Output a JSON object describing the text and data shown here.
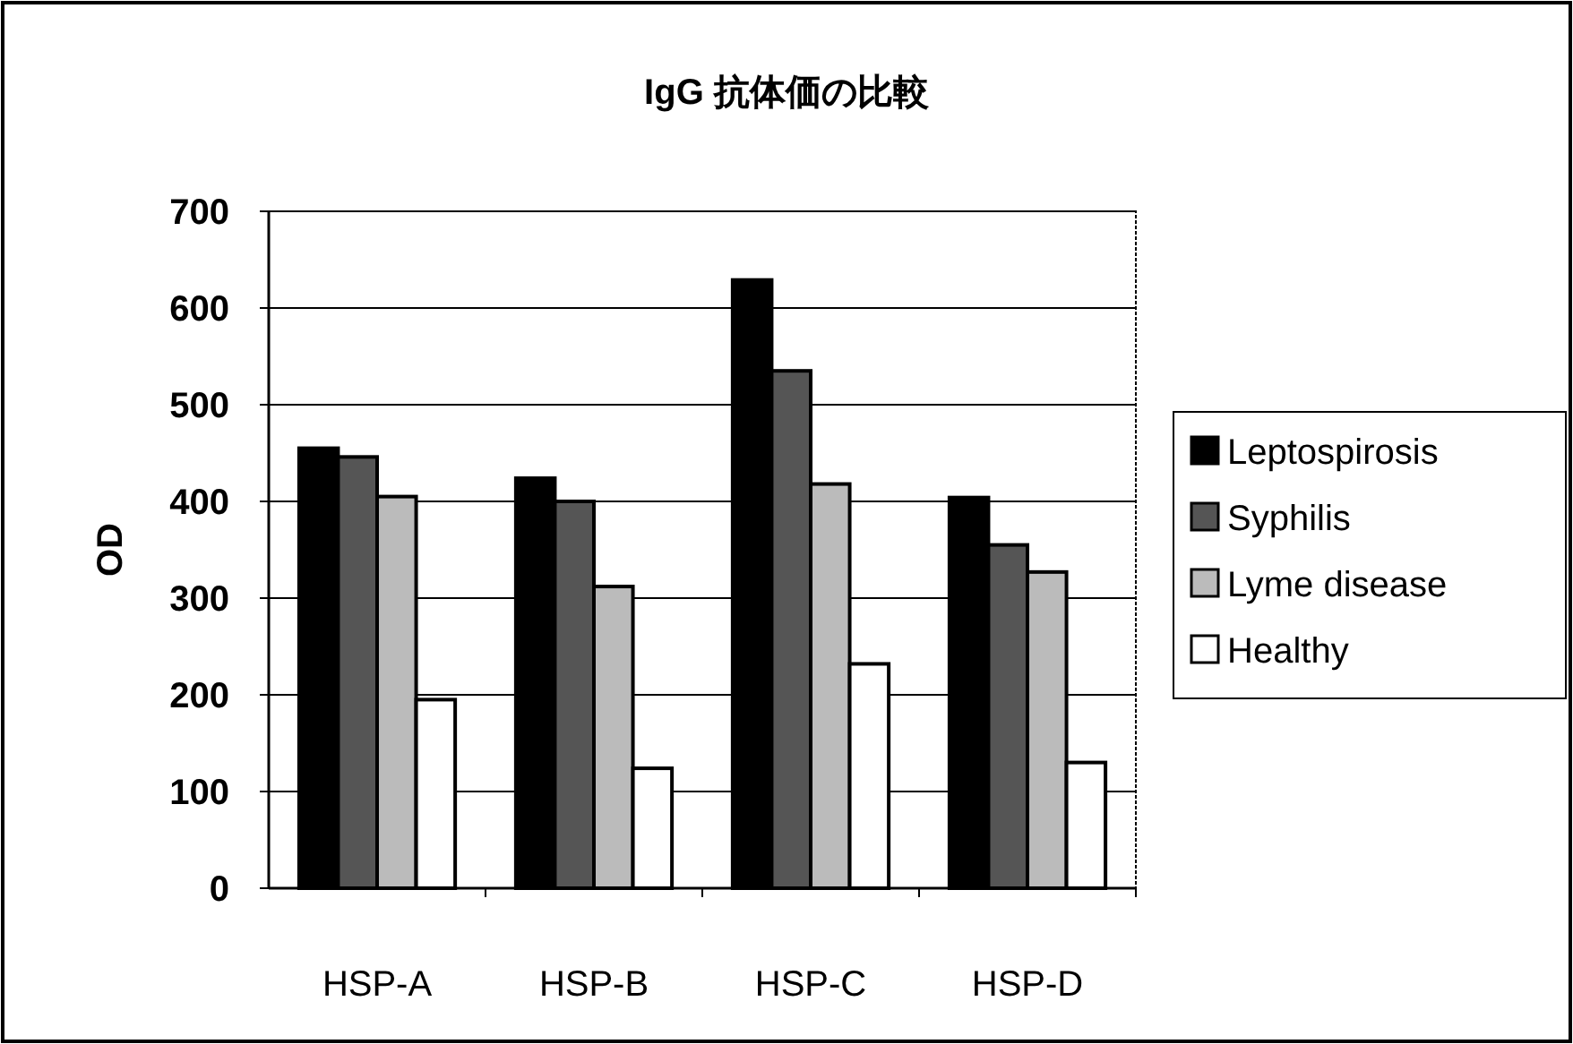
{
  "chart_data": {
    "type": "bar",
    "title": "IgG 抗体価の比較",
    "ylabel": "OD",
    "categories": [
      "HSP-A",
      "HSP-B",
      "HSP-C",
      "HSP-D"
    ],
    "series": [
      {
        "name": "Leptospirosis",
        "color": "#000000",
        "values": [
          455,
          424,
          629,
          404
        ]
      },
      {
        "name": "Syphilis",
        "color": "#555555",
        "values": [
          446,
          400,
          535,
          355
        ]
      },
      {
        "name": "Lyme disease",
        "color": "#bbbbbb",
        "values": [
          405,
          312,
          418,
          327
        ]
      },
      {
        "name": "Healthy",
        "color": "#ffffff",
        "values": [
          195,
          124,
          232,
          130
        ]
      }
    ],
    "ylim": [
      0,
      700
    ],
    "yticks": [
      0,
      100,
      200,
      300,
      400,
      500,
      600,
      700
    ],
    "grid": "y",
    "legend": "right"
  }
}
